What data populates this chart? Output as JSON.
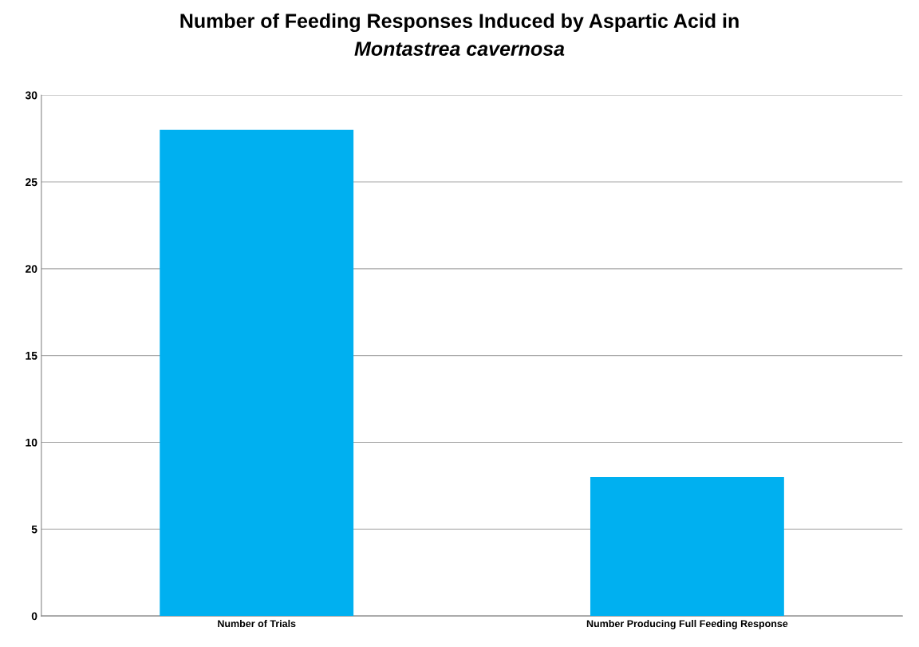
{
  "chart_data": {
    "type": "bar",
    "title": "Number of Feeding Responses Induced by Aspartic Acid in\nMontastrea cavernosa",
    "categories": [
      "Number of Trials",
      "Number Producing Full Feeding Response"
    ],
    "values": [
      28,
      8
    ],
    "color": "#00b0f0",
    "ylim": [
      0,
      30
    ],
    "yticks": [
      0,
      5,
      10,
      15,
      20,
      25,
      30
    ],
    "grid": "y",
    "legend": false
  }
}
